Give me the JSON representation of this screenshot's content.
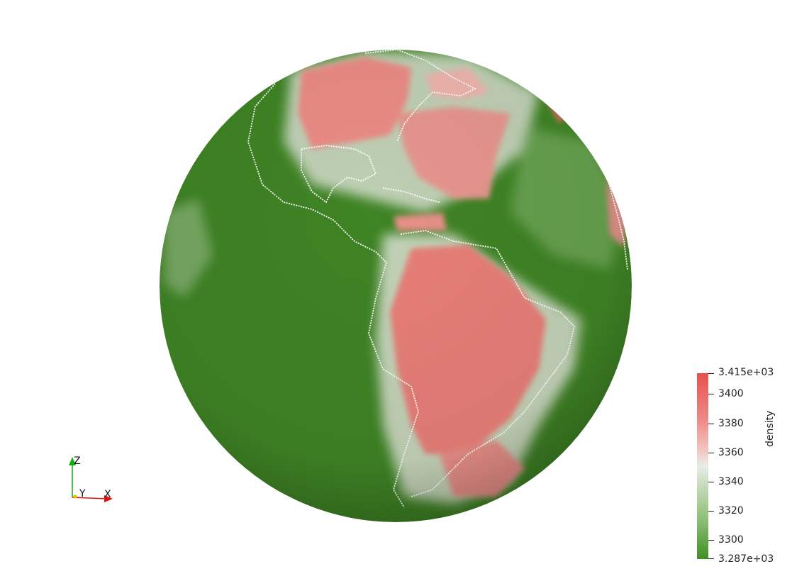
{
  "colorbar": {
    "title": "density",
    "max_label": "3.415e+03",
    "min_label": "3.287e+03",
    "max": 3415,
    "min": 3287,
    "ticks": [
      "3400",
      "3380",
      "3360",
      "3340",
      "3320",
      "3300"
    ],
    "colors": {
      "high": "#e8514d",
      "mid": "#e9ece6",
      "low": "#3f8f24"
    }
  },
  "axes": {
    "x_label": "X",
    "y_label": "Y",
    "z_label": "Z",
    "colors": {
      "x": "#e01010",
      "y": "#e0c000",
      "z": "#10b010"
    }
  },
  "globe": {
    "ocean_color": "#3f8425",
    "land_high_color": "#e06a62",
    "coastline_color": "#ffffff"
  }
}
